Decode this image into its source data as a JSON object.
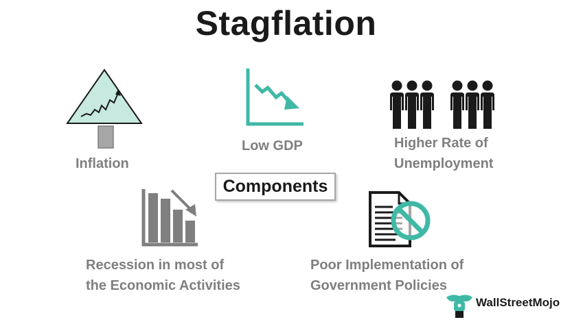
{
  "title": "Stagflation",
  "center": "Components",
  "components": [
    {
      "label": "Inflation",
      "icon": "inflation-tree-chart-icon"
    },
    {
      "label": "Low GDP",
      "icon": "declining-line-chart-icon"
    },
    {
      "label_lines": [
        "Higher Rate of",
        "Unemployment"
      ],
      "icon": "people-group-icon"
    },
    {
      "label_lines": [
        "Recession in most of",
        "the Economic Activities"
      ],
      "icon": "declining-bar-chart-icon"
    },
    {
      "label_lines": [
        "Poor Implementation of",
        "Government Policies"
      ],
      "icon": "document-prohibited-icon"
    }
  ],
  "logo": {
    "text": "WallStreetMojo",
    "icon": "mojo-logo-icon"
  },
  "colors": {
    "accent_teal": "#3fb9a6",
    "gray": "#7f7f7f",
    "dark": "#1a1a1a",
    "mint_fill": "#c7e9df"
  }
}
